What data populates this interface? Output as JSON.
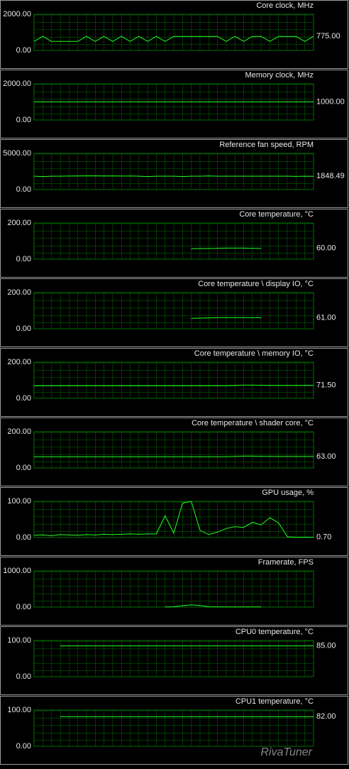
{
  "chart_data": [
    {
      "type": "line",
      "title": "Core clock, MHz",
      "color": "#22ff22",
      "grid": true,
      "ylim": [
        0,
        2000
      ],
      "yticks": [
        {
          "value": 0,
          "label": "0.00"
        },
        {
          "value": 2000,
          "label": "2000.00"
        }
      ],
      "values": [
        500,
        775,
        500,
        500,
        500,
        500,
        775,
        500,
        775,
        500,
        775,
        500,
        775,
        500,
        775,
        500,
        775,
        775,
        775,
        775,
        775,
        775,
        500,
        775,
        500,
        775,
        775,
        500,
        775,
        775,
        775,
        500,
        775
      ],
      "current": {
        "value": 775,
        "label": "775.00"
      }
    },
    {
      "type": "line",
      "title": "Memory clock, MHz",
      "color": "#22ff22",
      "grid": true,
      "ylim": [
        0,
        2000
      ],
      "yticks": [
        {
          "value": 0,
          "label": "0.00"
        },
        {
          "value": 2000,
          "label": "2000.00"
        }
      ],
      "values": [
        1000,
        1000,
        1000,
        1000,
        1000,
        1000,
        1000,
        1000,
        1000,
        1000,
        1000,
        1000,
        1000,
        1000,
        1000,
        1000,
        1000,
        1000,
        1000,
        1000,
        1000,
        1000,
        1000,
        1000,
        1000,
        1000,
        1000,
        1000,
        1000,
        1000,
        1000,
        1000,
        1000
      ],
      "current": {
        "value": 1000,
        "label": "1000.00"
      }
    },
    {
      "type": "line",
      "title": "Reference fan speed, RPM",
      "color": "#22ff22",
      "grid": true,
      "ylim": [
        0,
        5000
      ],
      "yticks": [
        {
          "value": 0,
          "label": "0.00"
        },
        {
          "value": 5000,
          "label": "5000.00"
        }
      ],
      "values": [
        1850,
        1800,
        1850,
        1850,
        1870,
        1880,
        1900,
        1900,
        1880,
        1880,
        1870,
        1870,
        1850,
        1800,
        1850,
        1850,
        1850,
        1800,
        1850,
        1850,
        1880,
        1850,
        1850,
        1850,
        1850,
        1850,
        1850,
        1850,
        1850,
        1850,
        1820,
        1850,
        1848
      ],
      "current": {
        "value": 1848.49,
        "label": "1848.49"
      }
    },
    {
      "type": "line",
      "title": "Core temperature, °C",
      "color": "#22ff22",
      "grid": true,
      "ylim": [
        0,
        200
      ],
      "yticks": [
        {
          "value": 0,
          "label": "0.00"
        },
        {
          "value": 200,
          "label": "200.00"
        }
      ],
      "values": [
        null,
        null,
        null,
        null,
        null,
        null,
        null,
        null,
        null,
        null,
        null,
        null,
        null,
        null,
        null,
        null,
        null,
        null,
        58,
        59,
        59,
        60,
        61,
        61,
        61,
        60,
        60,
        null,
        null,
        null,
        null,
        null,
        null
      ],
      "current": {
        "value": 60,
        "label": "60.00"
      }
    },
    {
      "type": "line",
      "title": "Core temperature \\ display IO, °C",
      "color": "#22ff22",
      "grid": true,
      "ylim": [
        0,
        200
      ],
      "yticks": [
        {
          "value": 0,
          "label": "0.00"
        },
        {
          "value": 200,
          "label": "200.00"
        }
      ],
      "values": [
        null,
        null,
        null,
        null,
        null,
        null,
        null,
        null,
        null,
        null,
        null,
        null,
        null,
        null,
        null,
        null,
        null,
        null,
        58,
        59,
        60,
        61,
        62,
        62,
        62,
        61,
        61,
        null,
        null,
        null,
        null,
        null,
        null
      ],
      "current": {
        "value": 61,
        "label": "61.00"
      }
    },
    {
      "type": "line",
      "title": "Core temperature \\ memory IO, °C",
      "color": "#22ff22",
      "grid": true,
      "ylim": [
        0,
        200
      ],
      "yticks": [
        {
          "value": 0,
          "label": "0.00"
        },
        {
          "value": 200,
          "label": "200.00"
        }
      ],
      "values": [
        70,
        70,
        70,
        70,
        70,
        70,
        70,
        70,
        70,
        70,
        70,
        70,
        70,
        70,
        70,
        70,
        70,
        70,
        70,
        70,
        70,
        70,
        70,
        71,
        73,
        73,
        72,
        71,
        71,
        71,
        71,
        71,
        71.5
      ],
      "current": {
        "value": 71.5,
        "label": "71.50"
      }
    },
    {
      "type": "line",
      "title": "Core temperature \\ shader core, °C",
      "color": "#22ff22",
      "grid": true,
      "ylim": [
        0,
        200
      ],
      "yticks": [
        {
          "value": 0,
          "label": "0.00"
        },
        {
          "value": 200,
          "label": "200.00"
        }
      ],
      "values": [
        62,
        62,
        62,
        62,
        62,
        62,
        62,
        62,
        62,
        62,
        62,
        62,
        62,
        62,
        62,
        62,
        62,
        62,
        62,
        62,
        62,
        62,
        62,
        63,
        65,
        65,
        64,
        63,
        63,
        63,
        63,
        63,
        63
      ],
      "current": {
        "value": 63,
        "label": "63.00"
      }
    },
    {
      "type": "line",
      "title": "GPU usage, %",
      "color": "#22ff22",
      "grid": true,
      "ylim": [
        0,
        100
      ],
      "yticks": [
        {
          "value": 0,
          "label": "0.00"
        },
        {
          "value": 100,
          "label": "100.00"
        }
      ],
      "values": [
        6,
        7,
        5,
        8,
        7,
        6,
        8,
        7,
        9,
        8,
        9,
        10,
        9,
        10,
        10,
        60,
        12,
        95,
        100,
        20,
        8,
        15,
        25,
        30,
        28,
        42,
        35,
        55,
        40,
        2,
        1,
        1,
        0.7
      ],
      "current": {
        "value": 0.7,
        "label": "0.70"
      }
    },
    {
      "type": "line",
      "title": "Framerate, FPS",
      "color": "#22ff22",
      "grid": true,
      "ylim": [
        0,
        1000
      ],
      "yticks": [
        {
          "value": 0,
          "label": "0.00"
        },
        {
          "value": 1000,
          "label": "1000.00"
        }
      ],
      "values": [
        null,
        null,
        null,
        null,
        null,
        null,
        null,
        null,
        null,
        null,
        null,
        null,
        null,
        null,
        null,
        5,
        8,
        40,
        60,
        45,
        10,
        8,
        6,
        5,
        6,
        5,
        5,
        null,
        null,
        null,
        null,
        null,
        null
      ],
      "current": null
    },
    {
      "type": "line",
      "title": "CPU0 temperature, °C",
      "color": "#22ff22",
      "grid": true,
      "ylim": [
        0,
        100
      ],
      "yticks": [
        {
          "value": 0,
          "label": "0.00"
        },
        {
          "value": 100,
          "label": "100.00"
        }
      ],
      "values": [
        null,
        null,
        null,
        85,
        85,
        85,
        85,
        85,
        85,
        85,
        85,
        85,
        85,
        85,
        85,
        85,
        85,
        85,
        85,
        85,
        85,
        85,
        85,
        85,
        85,
        85,
        85,
        85,
        85,
        85,
        85,
        85,
        85
      ],
      "current": {
        "value": 85,
        "label": "85.00"
      }
    },
    {
      "type": "line",
      "title": "CPU1 temperature, °C",
      "color": "#22ff22",
      "grid": true,
      "ylim": [
        0,
        100
      ],
      "yticks": [
        {
          "value": 0,
          "label": "0.00"
        },
        {
          "value": 100,
          "label": "100.00"
        }
      ],
      "values": [
        null,
        null,
        null,
        82,
        82,
        82,
        82,
        82,
        82,
        82,
        82,
        82,
        82,
        82,
        82,
        82,
        82,
        82,
        82,
        82,
        82,
        82,
        82,
        82,
        82,
        82,
        82,
        82,
        82,
        82,
        82,
        82,
        82
      ],
      "current": {
        "value": 82,
        "label": "82.00"
      }
    }
  ],
  "watermark": "RivaTuner"
}
